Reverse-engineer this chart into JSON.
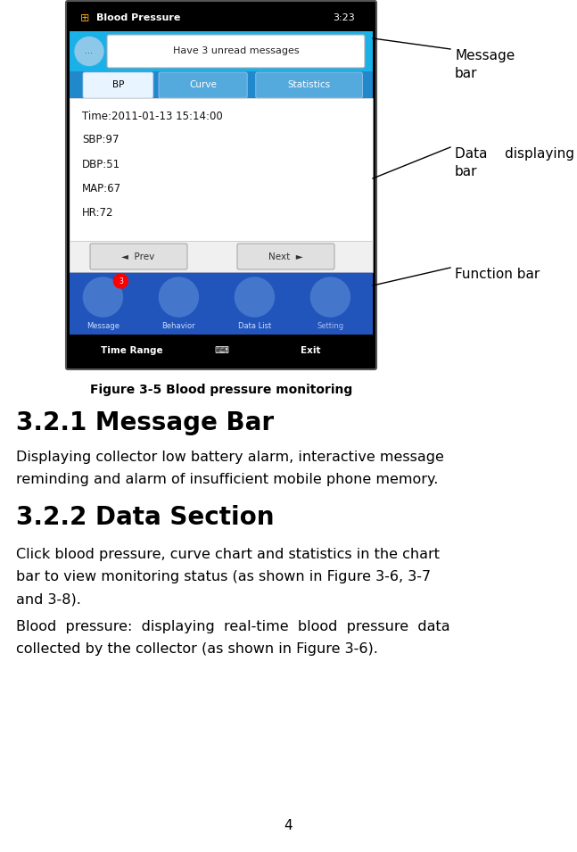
{
  "fig_width": 6.47,
  "fig_height": 9.55,
  "bg_color": "#ffffff",
  "figure_caption": "Figure 3-5 Blood pressure monitoring",
  "section1_title": "3.2.1 Message Bar",
  "section1_body1": "Displaying collector low battery alarm, interactive message",
  "section1_body2": "reminding and alarm of insufficient mobile phone memory.",
  "section2_title": "3.2.2 Data Section",
  "section2_body1a": "Click blood pressure, curve chart and statistics in the chart",
  "section2_body1b": "bar to view monitoring status (as shown in Figure 3-6, 3-7",
  "section2_body1c": "and 3-8).",
  "section2_body2a": "Blood  pressure:  displaying  real-time  blood  pressure  data",
  "section2_body2b": "collected by the collector (as shown in Figure 3-6).",
  "page_number": "4",
  "label_message_bar": "Message\nbar",
  "label_data_bar": "Data    displaying\nbar",
  "label_function_bar": "Function bar"
}
